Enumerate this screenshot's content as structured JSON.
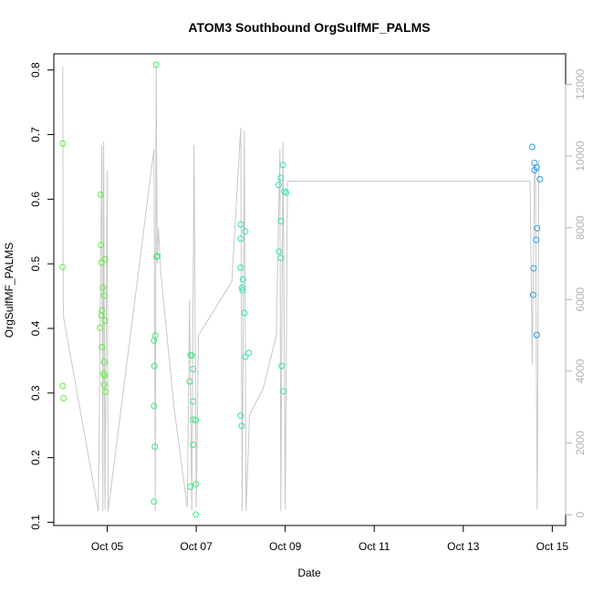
{
  "chart_data": {
    "type": "scatter",
    "title": "ATOM3 Southbound OrgSulfMF_PALMS",
    "xlabel": "Date",
    "ylabel": "OrgSulfMF_PALMS",
    "right_axis_label": "",
    "x_ticks": [
      "Oct 05",
      "Oct 07",
      "Oct 09",
      "Oct 11",
      "Oct 13",
      "Oct 15"
    ],
    "x_tick_values": [
      5,
      7,
      9,
      11,
      13,
      15
    ],
    "xlim": [
      3.8,
      15.3
    ],
    "ylim": [
      0.095,
      0.825
    ],
    "y_ticks": [
      0.1,
      0.2,
      0.3,
      0.4,
      0.5,
      0.6,
      0.7,
      0.8
    ],
    "y_tick_labels": [
      "0.1",
      "0.2",
      "0.3",
      "0.4",
      "0.5",
      "0.6",
      "0.7",
      "0.8"
    ],
    "y2lim": [
      -300,
      12850
    ],
    "y2_ticks": [
      0,
      2000,
      4000,
      6000,
      8000,
      10000,
      12000
    ],
    "y2_tick_labels": [
      "0",
      "2000",
      "4000",
      "6000",
      "8000",
      "10000",
      "12000"
    ],
    "grid": false,
    "point_colors": [
      "#5cf03c",
      "#3fea7c",
      "#2ee6b0",
      "#35c2dc",
      "#2a9ee8"
    ],
    "altitude_color": "#c8c8c8",
    "series": [
      {
        "values": [
          [
            4.0,
            0.686
          ],
          [
            4.0,
            0.495
          ],
          [
            4.0,
            0.311
          ],
          [
            4.02,
            0.292
          ],
          [
            4.85,
            0.607
          ],
          [
            4.86,
            0.529
          ],
          [
            4.87,
            0.502
          ],
          [
            4.88,
            0.428
          ],
          [
            4.87,
            0.42
          ],
          [
            4.84,
            0.401
          ],
          [
            4.88,
            0.371
          ],
          [
            4.9,
            0.463
          ],
          [
            4.93,
            0.451
          ],
          [
            4.95,
            0.507
          ],
          [
            4.95,
            0.412
          ],
          [
            4.93,
            0.348
          ],
          [
            4.92,
            0.33
          ],
          [
            4.94,
            0.327
          ],
          [
            4.93,
            0.313
          ],
          [
            4.96,
            0.302
          ],
          [
            6.1,
            0.808
          ],
          [
            6.13,
            0.512
          ],
          [
            6.11,
            0.511
          ],
          [
            6.08,
            0.389
          ],
          [
            6.05,
            0.381
          ],
          [
            6.06,
            0.342
          ],
          [
            6.05,
            0.28
          ],
          [
            6.07,
            0.217
          ],
          [
            6.05,
            0.132
          ],
          [
            6.87,
            0.359
          ],
          [
            6.9,
            0.358
          ],
          [
            6.93,
            0.337
          ],
          [
            6.85,
            0.318
          ],
          [
            6.93,
            0.287
          ],
          [
            6.93,
            0.259
          ],
          [
            6.99,
            0.258
          ],
          [
            6.93,
            0.22
          ],
          [
            6.87,
            0.155
          ],
          [
            6.99,
            0.159
          ],
          [
            6.99,
            0.112
          ],
          [
            8.0,
            0.561
          ],
          [
            8.1,
            0.55
          ],
          [
            8.0,
            0.539
          ],
          [
            8.0,
            0.494
          ],
          [
            8.05,
            0.476
          ],
          [
            8.03,
            0.463
          ],
          [
            8.04,
            0.459
          ],
          [
            8.08,
            0.424
          ],
          [
            8.18,
            0.362
          ],
          [
            8.1,
            0.356
          ],
          [
            8.0,
            0.265
          ],
          [
            8.02,
            0.249
          ],
          [
            8.95,
            0.653
          ],
          [
            8.9,
            0.633
          ],
          [
            8.85,
            0.622
          ],
          [
            8.98,
            0.612
          ],
          [
            9.02,
            0.61
          ],
          [
            8.9,
            0.566
          ],
          [
            8.86,
            0.519
          ],
          [
            8.9,
            0.509
          ],
          [
            8.92,
            0.342
          ],
          [
            8.96,
            0.303
          ],
          [
            14.55,
            0.681
          ],
          [
            14.6,
            0.656
          ],
          [
            14.65,
            0.649
          ],
          [
            14.6,
            0.645
          ],
          [
            14.72,
            0.631
          ],
          [
            14.66,
            0.555
          ],
          [
            14.64,
            0.537
          ],
          [
            14.58,
            0.493
          ],
          [
            14.57,
            0.452
          ],
          [
            14.65,
            0.39
          ]
        ]
      },
      {
        "axis": "right",
        "values": [
          [
            4.0,
            12500
          ],
          [
            4.01,
            6200
          ],
          [
            4.02,
            5500
          ],
          [
            4.8,
            100
          ],
          [
            4.88,
            10300
          ],
          [
            4.9,
            100
          ],
          [
            4.92,
            10400
          ],
          [
            4.95,
            150
          ],
          [
            5.0,
            9600
          ],
          [
            5.02,
            100
          ],
          [
            6.05,
            10200
          ],
          [
            6.08,
            100
          ],
          [
            6.1,
            12550
          ],
          [
            6.12,
            7000
          ],
          [
            6.15,
            8000
          ],
          [
            6.2,
            6800
          ],
          [
            6.5,
            3000
          ],
          [
            6.8,
            200
          ],
          [
            6.85,
            6000
          ],
          [
            6.9,
            100
          ],
          [
            6.95,
            10300
          ],
          [
            7.0,
            200
          ],
          [
            7.05,
            5000
          ],
          [
            7.3,
            5500
          ],
          [
            7.8,
            6500
          ],
          [
            8.0,
            10800
          ],
          [
            8.03,
            100
          ],
          [
            8.08,
            10700
          ],
          [
            8.12,
            100
          ],
          [
            8.2,
            2800
          ],
          [
            8.5,
            3500
          ],
          [
            8.8,
            5000
          ],
          [
            8.88,
            10200
          ],
          [
            8.9,
            100
          ],
          [
            8.95,
            10400
          ],
          [
            9.0,
            150
          ],
          [
            9.05,
            9300
          ],
          [
            14.5,
            9300
          ],
          [
            14.55,
            4200
          ],
          [
            14.6,
            9800
          ],
          [
            14.62,
            9700
          ],
          [
            14.66,
            150
          ],
          [
            14.7,
            9900
          ]
        ]
      }
    ]
  }
}
